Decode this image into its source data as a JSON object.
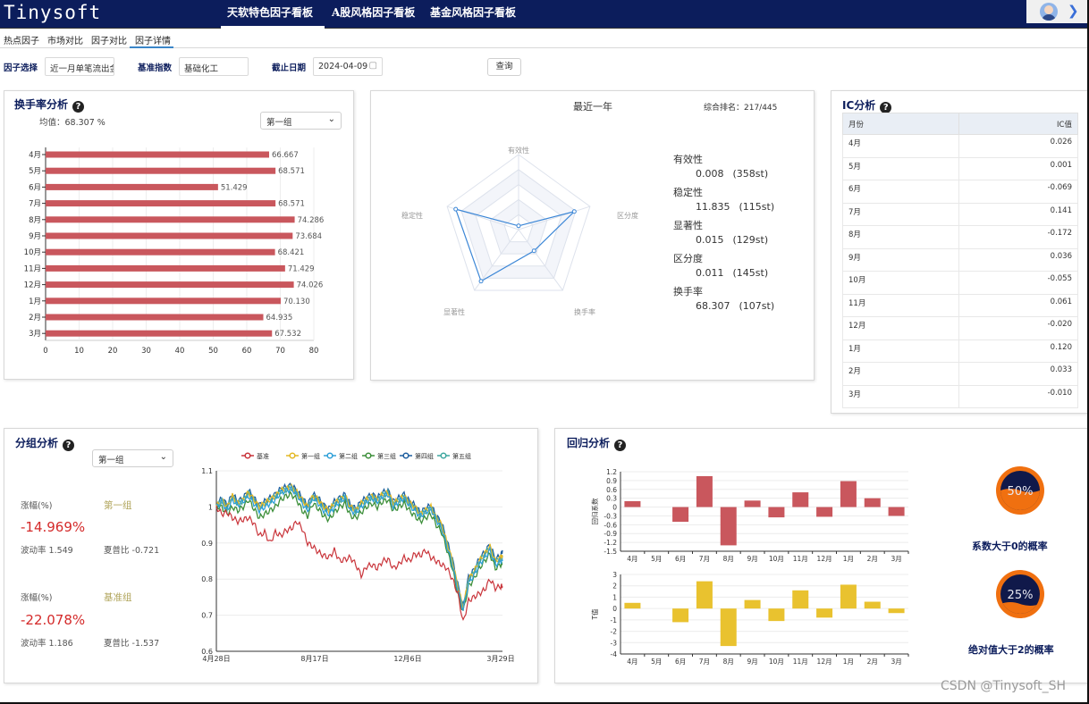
{
  "header": {
    "logo": "Tinysoft",
    "nav": [
      "天软特色因子看板",
      "A股风格因子看板",
      "基金风格因子看板"
    ]
  },
  "subnav": {
    "tabs": [
      "热点因子",
      "市场对比",
      "因子对比",
      "因子详情"
    ],
    "active": "因子详情"
  },
  "filters": {
    "factor_label": "因子选择",
    "factor_value": "近一月单笔流出金",
    "index_label": "基准指数",
    "index_value": "基础化工",
    "date_label": "截止日期",
    "date_value": "2024-04-09",
    "query_button": "查询"
  },
  "turnover": {
    "title": "换手率分析",
    "mean_text": "均值：68.307 %",
    "group_select": "第一组"
  },
  "radar": {
    "title": "最近一年",
    "rank_text": "综合排名：217/445",
    "axes": [
      "有效性",
      "区分度",
      "换手率",
      "显著性",
      "稳定性"
    ],
    "metrics": [
      {
        "name": "有效性",
        "value": "0.008",
        "rank": "(358st)"
      },
      {
        "name": "稳定性",
        "value": "11.835",
        "rank": "(115st)"
      },
      {
        "name": "显著性",
        "value": "0.015",
        "rank": "(129st)"
      },
      {
        "name": "区分度",
        "value": "0.011",
        "rank": "(145st)"
      },
      {
        "name": "换手率",
        "value": "68.307",
        "rank": "(107st)"
      }
    ]
  },
  "ic": {
    "title": "IC分析",
    "col_month": "月份",
    "col_value": "IC值",
    "rows": [
      {
        "m": "4月",
        "v": "0.026"
      },
      {
        "m": "5月",
        "v": "0.001"
      },
      {
        "m": "6月",
        "v": "-0.069"
      },
      {
        "m": "7月",
        "v": "0.141"
      },
      {
        "m": "8月",
        "v": "-0.172"
      },
      {
        "m": "9月",
        "v": "0.036"
      },
      {
        "m": "10月",
        "v": "-0.055"
      },
      {
        "m": "11月",
        "v": "0.061"
      },
      {
        "m": "12月",
        "v": "-0.020"
      },
      {
        "m": "1月",
        "v": "0.120"
      },
      {
        "m": "2月",
        "v": "0.033"
      },
      {
        "m": "3月",
        "v": "-0.010"
      }
    ]
  },
  "group": {
    "title": "分组分析",
    "select": "第一组",
    "g1": {
      "change_label": "涨幅(%)",
      "name": "第一组",
      "change": "-14.969%",
      "vol": "波动率 1.549",
      "sharpe": "夏普比 -0.721"
    },
    "g2": {
      "change_label": "涨幅(%)",
      "name": "基准组",
      "change": "-22.078%",
      "vol": "波动率 1.186",
      "sharpe": "夏普比 -1.537"
    }
  },
  "regression": {
    "title": "回归分析",
    "gauge1": {
      "pct_text": "50%",
      "pct": 0.5,
      "label": "系数大于0的概率"
    },
    "gauge2": {
      "pct_text": "25%",
      "pct": 0.25,
      "label": "绝对值大于2的概率"
    }
  },
  "watermark": "CSDN @Tinysoft_SH",
  "colors": {
    "navy": "#0c1d5c",
    "bar_red": "#c9575d",
    "bar_yellow": "#e9c22f",
    "radar_blue": "#3b86d6",
    "orange": "#f07010"
  },
  "chart_data": [
    {
      "type": "bar",
      "orientation": "horizontal",
      "categories": [
        "4月",
        "5月",
        "6月",
        "7月",
        "8月",
        "9月",
        "10月",
        "11月",
        "12月",
        "1月",
        "2月",
        "3月"
      ],
      "values": [
        66.667,
        68.571,
        51.429,
        68.571,
        74.286,
        73.684,
        68.421,
        71.429,
        74.026,
        70.13,
        64.935,
        67.532
      ],
      "labels": [
        "66.667",
        "68.571",
        "51.429",
        "68.571",
        "74.286",
        "73.684",
        "68.421",
        "71.429",
        "74.026",
        "70.130",
        "64.935",
        "67.532"
      ],
      "xlim": [
        0,
        80
      ],
      "xticks": [
        "0",
        "10",
        "20",
        "30",
        "40",
        "50",
        "60",
        "70",
        "80"
      ]
    },
    {
      "type": "radar",
      "axes": [
        "有效性",
        "区分度",
        "换手率",
        "显著性",
        "稳定性"
      ],
      "values": [
        0.05,
        0.78,
        0.35,
        0.85,
        0.88
      ]
    },
    {
      "type": "line",
      "legend": [
        "基准",
        "第一组",
        "第二组",
        "第三组",
        "第四组",
        "第五组"
      ],
      "series_colors": [
        "#c9343a",
        "#e3b825",
        "#2fa0d8",
        "#3d8f3a",
        "#1e5fa0",
        "#3fa7a0"
      ],
      "ylim": [
        0.6,
        1.1
      ],
      "yticks": [
        "0.6",
        "0.7",
        "0.8",
        "0.9",
        "1",
        "1.1"
      ],
      "xticks": [
        "4月28日",
        "8月17日",
        "12月6日",
        "3月29日"
      ],
      "x": [
        0,
        6,
        12,
        18,
        24,
        30,
        36,
        42,
        48,
        54,
        60,
        66,
        72,
        78,
        84,
        90,
        96,
        102,
        108,
        114,
        120,
        126,
        132,
        138,
        144,
        150,
        156,
        162,
        168,
        174,
        180,
        186,
        192,
        198,
        204,
        210,
        216,
        222,
        228,
        234,
        240,
        246,
        252,
        258,
        264,
        270,
        276,
        282,
        288,
        294,
        300,
        306,
        312,
        318,
        320
      ],
      "benchmark": [
        1.0,
        0.98,
        0.985,
        0.97,
        0.96,
        0.965,
        0.97,
        0.955,
        0.92,
        0.93,
        0.9,
        0.93,
        0.92,
        0.935,
        0.94,
        0.96,
        0.94,
        0.9,
        0.89,
        0.875,
        0.865,
        0.86,
        0.88,
        0.85,
        0.855,
        0.86,
        0.84,
        0.81,
        0.835,
        0.84,
        0.83,
        0.85,
        0.855,
        0.83,
        0.84,
        0.86,
        0.85,
        0.87,
        0.865,
        0.88,
        0.86,
        0.85,
        0.84,
        0.83,
        0.8,
        0.76,
        0.68,
        0.74,
        0.75,
        0.76,
        0.77,
        0.8,
        0.775,
        0.78,
        0.78
      ],
      "groups": [
        [
          1.0,
          1.02,
          1.0,
          1.03,
          1.01,
          1.02,
          1.04,
          1.02,
          1.0,
          1.01,
          1.02,
          1.03,
          1.045,
          1.05,
          1.055,
          1.04,
          1.02,
          1.0,
          1.03,
          1.02,
          1.0,
          0.99,
          1.01,
          1.02,
          1.03,
          1.0,
          0.99,
          1.01,
          1.02,
          1.03,
          1.02,
          1.035,
          1.04,
          1.01,
          1.02,
          1.03,
          1.01,
          1.0,
          0.98,
          0.99,
          1.0,
          0.97,
          0.95,
          0.9,
          0.85,
          0.78,
          0.72,
          0.8,
          0.82,
          0.85,
          0.87,
          0.89,
          0.85,
          0.86,
          0.86
        ],
        [
          1.0,
          1.015,
          0.99,
          1.02,
          1.005,
          1.015,
          1.03,
          1.01,
          0.99,
          1.0,
          1.01,
          1.02,
          1.04,
          1.045,
          1.05,
          1.035,
          1.01,
          0.99,
          1.025,
          1.01,
          0.99,
          0.98,
          1.0,
          1.015,
          1.025,
          0.99,
          0.985,
          1.0,
          1.015,
          1.025,
          1.015,
          1.03,
          1.035,
          1.0,
          1.015,
          1.025,
          1.005,
          0.99,
          0.975,
          0.985,
          0.995,
          0.965,
          0.94,
          0.89,
          0.84,
          0.77,
          0.715,
          0.79,
          0.81,
          0.84,
          0.86,
          0.88,
          0.84,
          0.85,
          0.85
        ],
        [
          1.0,
          1.0,
          0.98,
          1.0,
          0.99,
          1.0,
          1.02,
          0.995,
          0.97,
          0.98,
          0.99,
          1.0,
          1.02,
          1.03,
          1.035,
          1.02,
          0.99,
          0.975,
          1.01,
          0.995,
          0.975,
          0.965,
          0.985,
          1.0,
          1.01,
          0.975,
          0.97,
          0.985,
          1.0,
          1.01,
          1.0,
          1.015,
          1.02,
          0.99,
          1.0,
          1.01,
          0.99,
          0.975,
          0.96,
          0.97,
          0.98,
          0.95,
          0.93,
          0.88,
          0.83,
          0.76,
          0.71,
          0.78,
          0.8,
          0.83,
          0.85,
          0.87,
          0.83,
          0.84,
          0.84
        ],
        [
          1.0,
          1.025,
          1.005,
          1.035,
          1.015,
          1.025,
          1.045,
          1.025,
          1.005,
          1.015,
          1.025,
          1.035,
          1.05,
          1.055,
          1.06,
          1.045,
          1.025,
          1.005,
          1.035,
          1.025,
          1.005,
          0.995,
          1.015,
          1.025,
          1.035,
          1.005,
          0.995,
          1.015,
          1.025,
          1.035,
          1.025,
          1.04,
          1.045,
          1.015,
          1.025,
          1.035,
          1.015,
          1.005,
          0.985,
          0.995,
          1.005,
          0.975,
          0.955,
          0.905,
          0.855,
          0.785,
          0.725,
          0.805,
          0.825,
          0.855,
          0.875,
          0.895,
          0.855,
          0.865,
          0.88
        ],
        [
          1.0,
          1.018,
          0.998,
          1.028,
          1.008,
          1.018,
          1.038,
          1.018,
          0.998,
          1.008,
          1.018,
          1.028,
          1.043,
          1.048,
          1.053,
          1.038,
          1.018,
          0.998,
          1.028,
          1.018,
          0.998,
          0.988,
          1.008,
          1.018,
          1.028,
          0.998,
          0.988,
          1.008,
          1.018,
          1.028,
          1.018,
          1.033,
          1.038,
          1.008,
          1.018,
          1.028,
          1.008,
          0.998,
          0.978,
          0.988,
          0.998,
          0.968,
          0.948,
          0.898,
          0.848,
          0.778,
          0.718,
          0.798,
          0.818,
          0.848,
          0.868,
          0.888,
          0.848,
          0.858,
          0.865
        ]
      ]
    },
    {
      "type": "bar",
      "title": "回归系数",
      "categories": [
        "4月",
        "5月",
        "6月",
        "7月",
        "8月",
        "9月",
        "10月",
        "11月",
        "12月",
        "1月",
        "2月",
        "3月"
      ],
      "values": [
        0.2,
        0.0,
        -0.5,
        1.05,
        -1.3,
        0.22,
        -0.35,
        0.5,
        -0.33,
        0.88,
        0.3,
        -0.3
      ],
      "ylim": [
        -1.5,
        1.2
      ],
      "yticks": [
        "1.2",
        "0.9",
        "0.6",
        "0.3",
        "0",
        "-0.3",
        "-0.6",
        "-0.9",
        "-1.2",
        "-1.5"
      ]
    },
    {
      "type": "bar",
      "title": "T值",
      "categories": [
        "4月",
        "5月",
        "6月",
        "7月",
        "8月",
        "9月",
        "10月",
        "11月",
        "12月",
        "1月",
        "2月",
        "3月"
      ],
      "values": [
        0.5,
        0.0,
        -1.2,
        2.4,
        -3.3,
        0.75,
        -1.1,
        1.6,
        -0.8,
        2.1,
        0.6,
        -0.4
      ],
      "ylim": [
        -4,
        3
      ],
      "yticks": [
        "3",
        "2",
        "1",
        "0",
        "-1",
        "-2",
        "-3",
        "-4"
      ]
    }
  ]
}
